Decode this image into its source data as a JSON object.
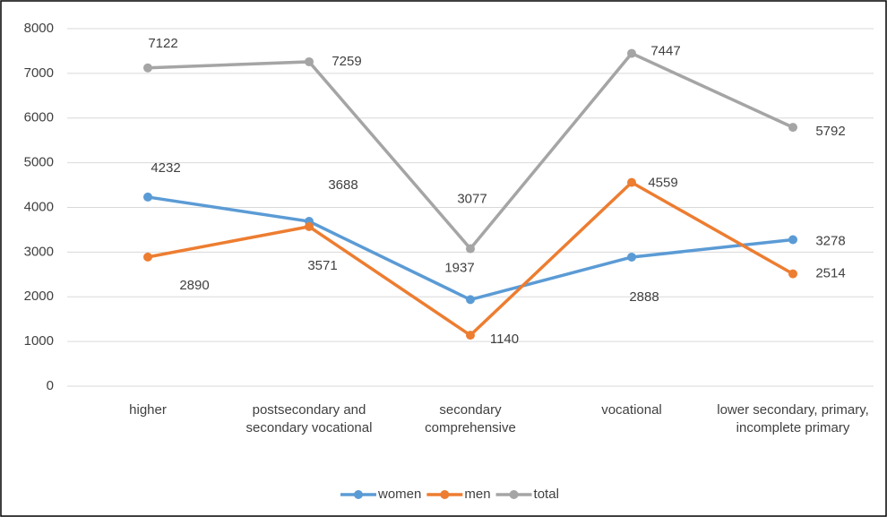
{
  "chart_data": {
    "type": "line",
    "categories": [
      "higher",
      "postsecondary and secondary vocational",
      "secondary comprehensive",
      "vocational",
      "lower secondary, primary, incomplete primary"
    ],
    "series": [
      {
        "name": "women",
        "color": "#5b9bd5",
        "values": [
          4232,
          3688,
          1937,
          2888,
          3278
        ]
      },
      {
        "name": "men",
        "color": "#ed7d31",
        "values": [
          2890,
          3571,
          1140,
          4559,
          2514
        ]
      },
      {
        "name": "total",
        "color": "#a5a5a5",
        "values": [
          7122,
          7259,
          3077,
          7447,
          5792
        ]
      }
    ],
    "ylim": [
      0,
      8000
    ],
    "yticks": [
      0,
      1000,
      2000,
      3000,
      4000,
      5000,
      6000,
      7000,
      8000
    ],
    "grid": true,
    "legend": "bottom"
  }
}
